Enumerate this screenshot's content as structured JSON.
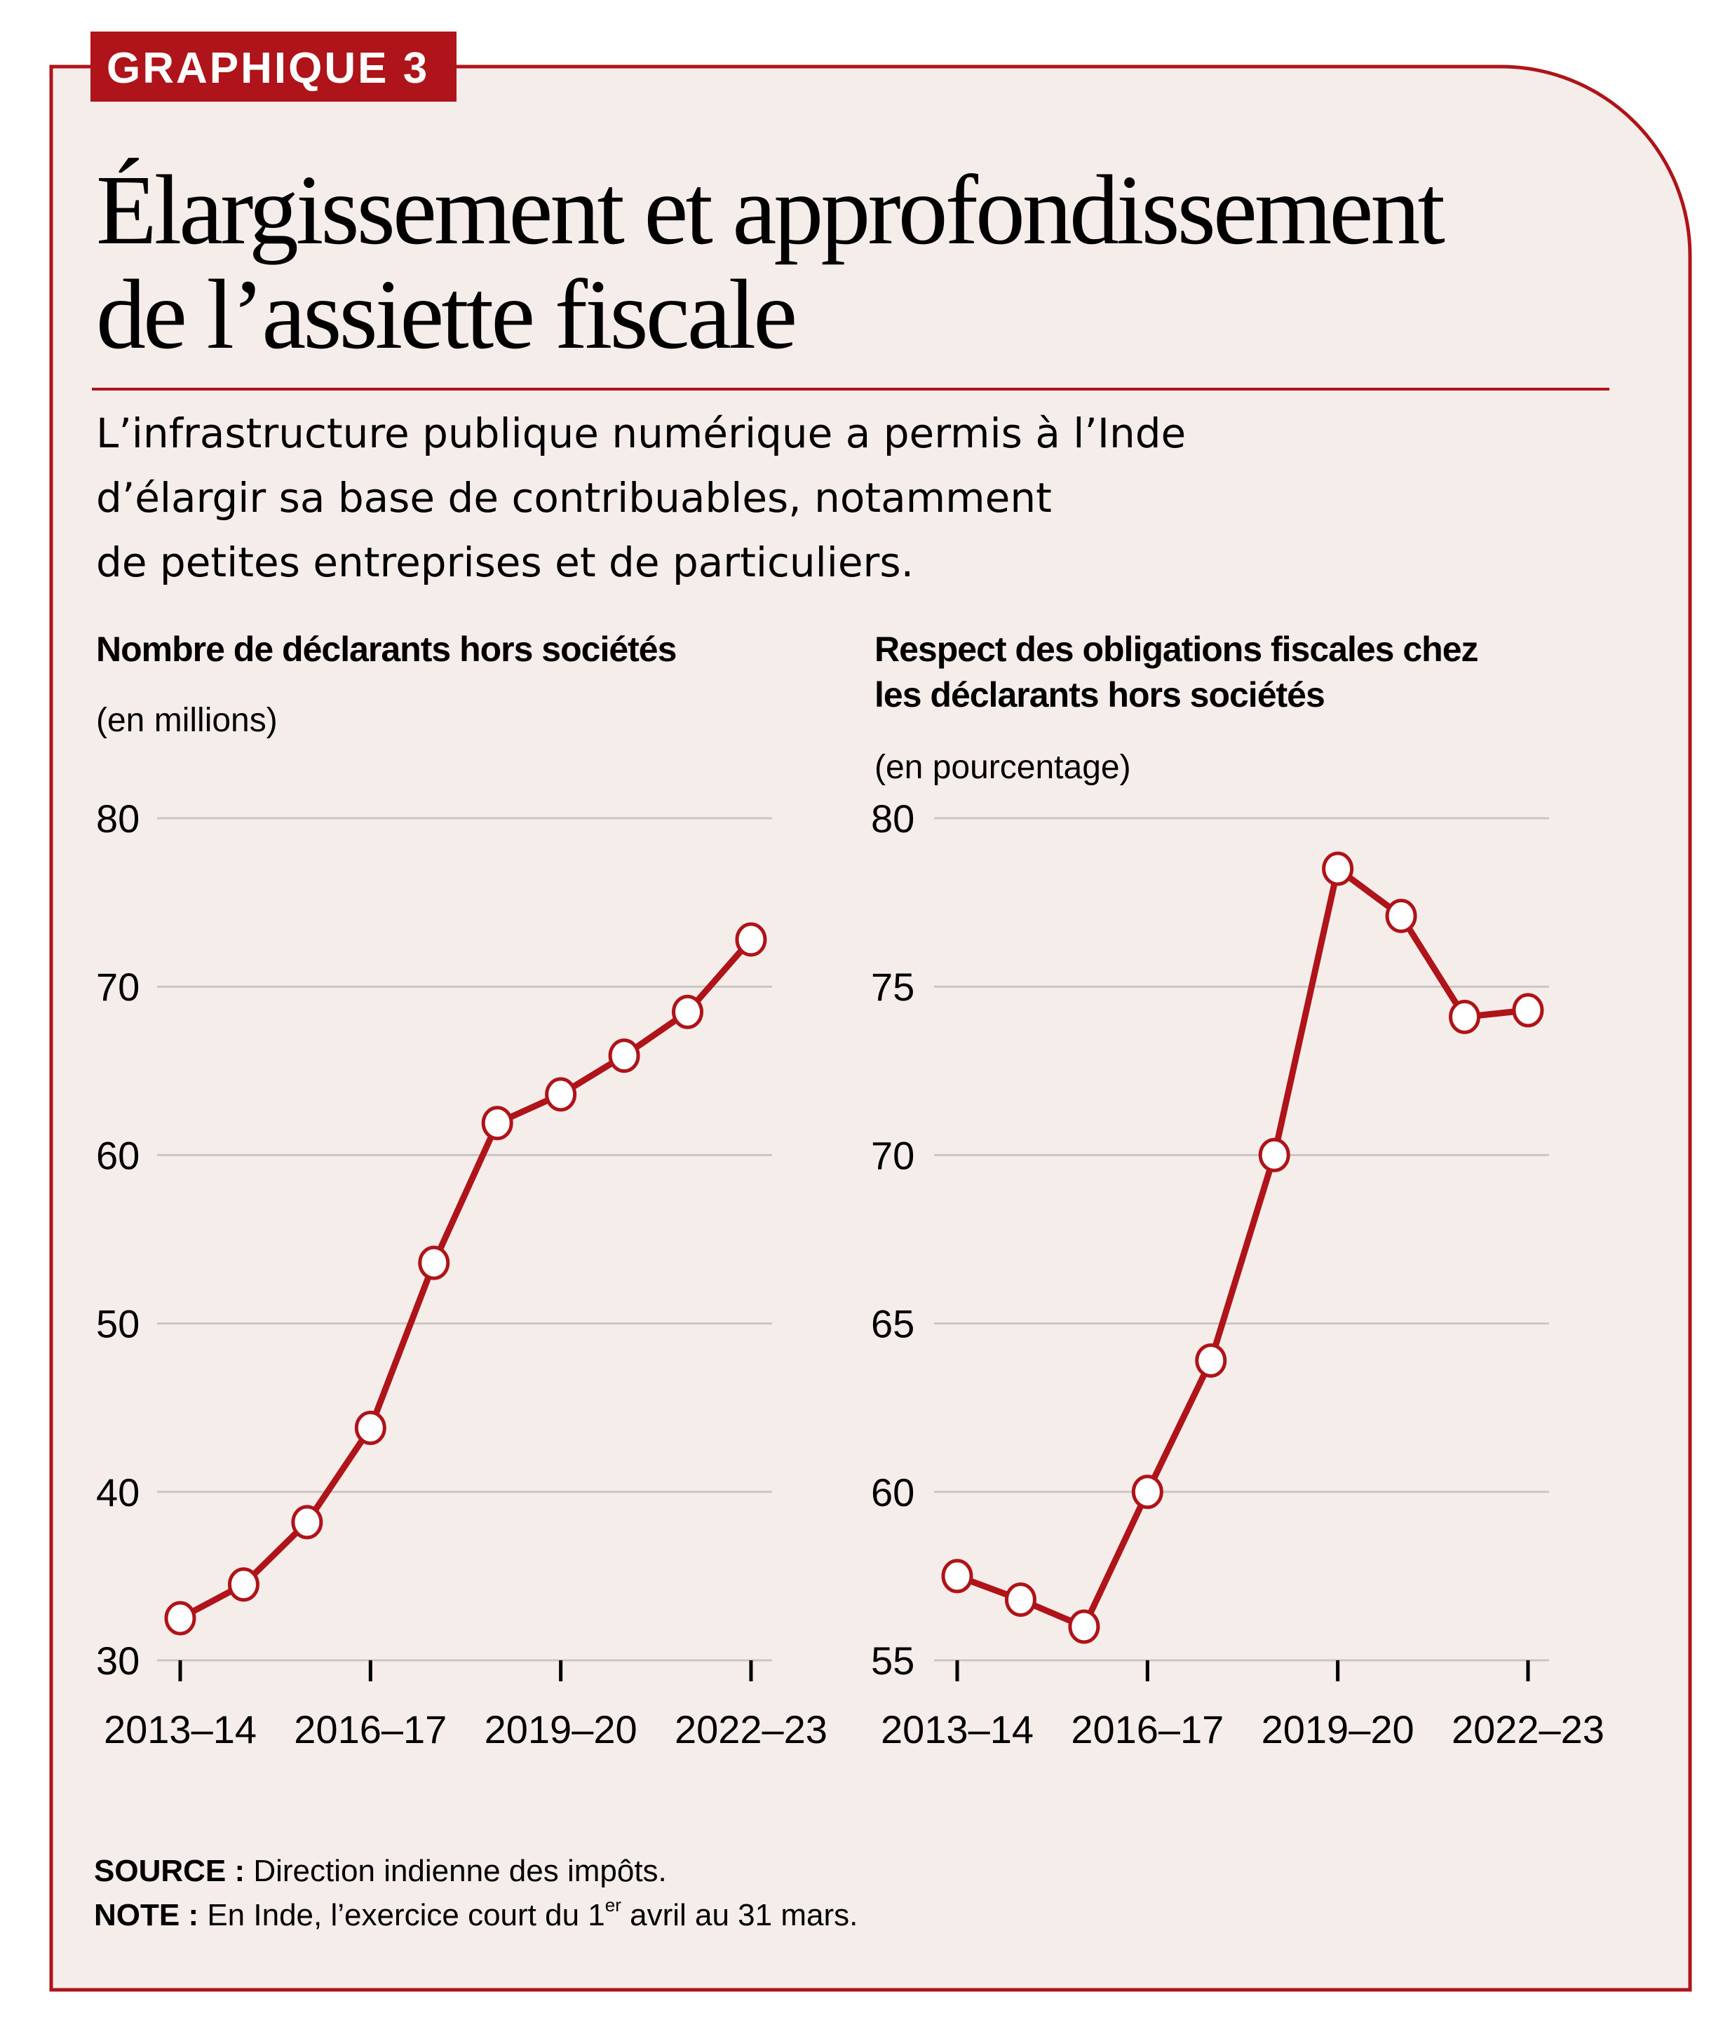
{
  "badge": {
    "label": "GRAPHIQUE 3"
  },
  "title": {
    "lines": [
      "Élargissement et approfondissement",
      "de l’assiette fiscale"
    ]
  },
  "subtitle": {
    "lines": [
      "L’infrastructure publique numérique a permis à l’Inde",
      "d’élargir sa base de contribuables, notamment",
      "de petites entreprises et de particuliers."
    ]
  },
  "colors": {
    "accent": "#ae1419",
    "background": "#f5edea",
    "grid": "#c9c6c4",
    "marker_fill": "#ffffff"
  },
  "chart_data": [
    {
      "type": "line",
      "title_lines": [
        "Nombre de déclarants hors sociétés"
      ],
      "unit": "(en millions)",
      "ylabel": "",
      "xlabel": "",
      "x": [
        "2013-14",
        "2014-15",
        "2015-16",
        "2016-17",
        "2017-18",
        "2018-19",
        "2019-20",
        "2020-21",
        "2021-22",
        "2022-23"
      ],
      "x_tick_labels": [
        "2013–14",
        "2016–17",
        "2019–20",
        "2022–23"
      ],
      "x_tick_indices": [
        0,
        3,
        6,
        9
      ],
      "y_ticks": [
        30,
        40,
        50,
        60,
        70,
        80
      ],
      "ylim": [
        30,
        80
      ],
      "grid": true,
      "legend": "none",
      "series": [
        {
          "name": "Nombre de déclarants hors sociétés",
          "values": [
            32.5,
            34.5,
            38.2,
            43.8,
            53.6,
            61.9,
            63.6,
            65.9,
            68.5,
            72.8
          ]
        }
      ]
    },
    {
      "type": "line",
      "title_lines": [
        "Respect des obligations fiscales chez",
        "les déclarants hors sociétés"
      ],
      "unit": "(en pourcentage)",
      "ylabel": "",
      "xlabel": "",
      "x": [
        "2013-14",
        "2014-15",
        "2015-16",
        "2016-17",
        "2017-18",
        "2018-19",
        "2019-20",
        "2020-21",
        "2021-22",
        "2022-23"
      ],
      "x_tick_labels": [
        "2013–14",
        "2016–17",
        "2019–20",
        "2022–23"
      ],
      "x_tick_indices": [
        0,
        3,
        6,
        9
      ],
      "y_ticks": [
        55,
        60,
        65,
        70,
        75,
        80
      ],
      "ylim": [
        55,
        80
      ],
      "grid": true,
      "legend": "none",
      "series": [
        {
          "name": "Respect des obligations fiscales",
          "values": [
            57.5,
            56.8,
            56.0,
            60.0,
            63.9,
            70.0,
            78.5,
            77.1,
            74.1,
            74.3
          ]
        }
      ]
    }
  ],
  "footer": {
    "source_label": "SOURCE :",
    "source_text": " Direction indienne des impôts.",
    "note_label": "NOTE :",
    "note_text_before": " En Inde, l’exercice court du 1",
    "note_superscript": "er",
    "note_text_after": " avril au 31 mars."
  }
}
